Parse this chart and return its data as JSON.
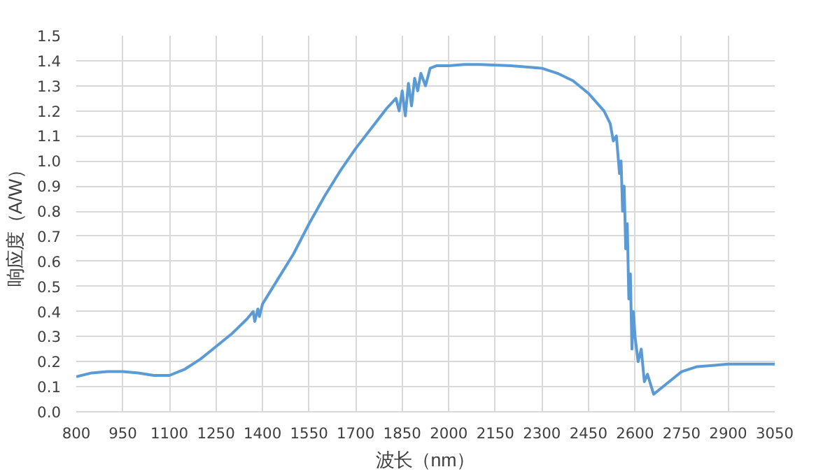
{
  "chart_data": {
    "type": "line",
    "xlabel": "波长（nm）",
    "ylabel": "响应度（A/W）",
    "x": [
      800,
      850,
      900,
      950,
      1000,
      1050,
      1100,
      1150,
      1200,
      1250,
      1300,
      1350,
      1370,
      1375,
      1385,
      1390,
      1400,
      1410,
      1450,
      1500,
      1550,
      1600,
      1650,
      1700,
      1750,
      1800,
      1830,
      1840,
      1850,
      1860,
      1870,
      1880,
      1890,
      1900,
      1910,
      1925,
      1940,
      1960,
      2000,
      2050,
      2100,
      2200,
      2300,
      2350,
      2400,
      2450,
      2500,
      2520,
      2530,
      2540,
      2550,
      2555,
      2560,
      2565,
      2570,
      2575,
      2580,
      2585,
      2590,
      2595,
      2600,
      2610,
      2620,
      2630,
      2640,
      2660,
      2680,
      2700,
      2750,
      2800,
      2850,
      2900,
      3050
    ],
    "series": [
      {
        "color": "#5b9bd5",
        "values": [
          0.14,
          0.155,
          0.16,
          0.16,
          0.155,
          0.145,
          0.145,
          0.17,
          0.21,
          0.26,
          0.31,
          0.37,
          0.4,
          0.36,
          0.41,
          0.38,
          0.43,
          0.45,
          0.53,
          0.63,
          0.75,
          0.86,
          0.96,
          1.05,
          1.13,
          1.21,
          1.25,
          1.2,
          1.28,
          1.18,
          1.31,
          1.22,
          1.33,
          1.28,
          1.35,
          1.3,
          1.37,
          1.38,
          1.38,
          1.385,
          1.385,
          1.38,
          1.37,
          1.35,
          1.32,
          1.27,
          1.2,
          1.15,
          1.08,
          1.1,
          0.95,
          1.0,
          0.8,
          0.9,
          0.65,
          0.75,
          0.45,
          0.55,
          0.25,
          0.4,
          0.3,
          0.2,
          0.25,
          0.12,
          0.15,
          0.07,
          0.09,
          0.11,
          0.16,
          0.18,
          0.185,
          0.19,
          0.19
        ]
      }
    ],
    "xlim": [
      800,
      3050
    ],
    "xticks": [
      800,
      950,
      1100,
      1250,
      1400,
      1550,
      1700,
      1850,
      2000,
      2150,
      2300,
      2450,
      2600,
      2750,
      2900,
      3050
    ],
    "ylim": [
      0,
      1.5
    ],
    "yticks": [
      {
        "value": 0,
        "label": "0.0"
      },
      0.1,
      0.2,
      0.3,
      0.4,
      0.5,
      0.6,
      0.7,
      0.8,
      0.9,
      {
        "value": 1,
        "label": "1.0"
      },
      1.1,
      1.2,
      1.3,
      1.4,
      1.5
    ],
    "grid": true
  }
}
